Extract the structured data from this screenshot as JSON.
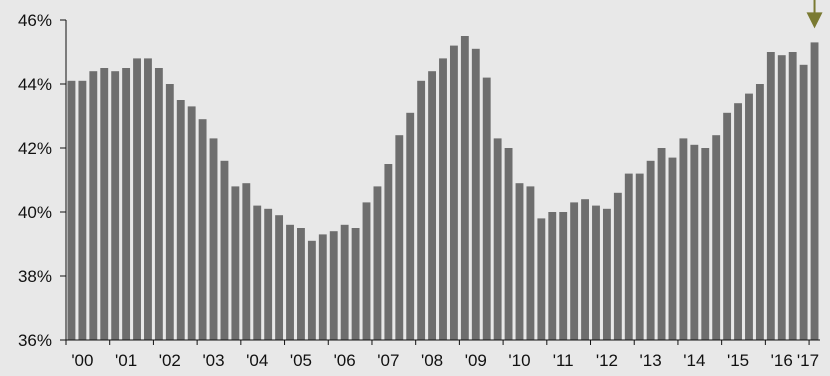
{
  "chart_data": {
    "type": "bar",
    "title": "",
    "xlabel": "",
    "ylabel": "",
    "ylim": [
      36,
      46
    ],
    "y_ticks": [
      36,
      38,
      40,
      42,
      44,
      46
    ],
    "y_tick_labels": [
      "36%",
      "38%",
      "40%",
      "42%",
      "44%",
      "46%"
    ],
    "x_tick_labels": [
      "'00",
      "'01",
      "'02",
      "'03",
      "'04",
      "'05",
      "'06",
      "'07",
      "'08",
      "'09",
      "'10",
      "'11",
      "'12",
      "'13",
      "'14",
      "'15",
      "'16",
      "'17"
    ],
    "grid": false,
    "bar_color": "#6e6e6e",
    "arrow_color": "#7a7a32",
    "annotation": "arrow marking latest value",
    "categories": [
      "Q1 2000",
      "Q2 2000",
      "Q3 2000",
      "Q4 2000",
      "Q1 2001",
      "Q2 2001",
      "Q3 2001",
      "Q4 2001",
      "Q1 2002",
      "Q2 2002",
      "Q3 2002",
      "Q4 2002",
      "Q1 2003",
      "Q2 2003",
      "Q3 2003",
      "Q4 2003",
      "Q1 2004",
      "Q2 2004",
      "Q3 2004",
      "Q4 2004",
      "Q1 2005",
      "Q2 2005",
      "Q3 2005",
      "Q4 2005",
      "Q1 2006",
      "Q2 2006",
      "Q3 2006",
      "Q4 2006",
      "Q1 2007",
      "Q2 2007",
      "Q3 2007",
      "Q4 2007",
      "Q1 2008",
      "Q2 2008",
      "Q3 2008",
      "Q4 2008",
      "Q1 2009",
      "Q2 2009",
      "Q3 2009",
      "Q4 2009",
      "Q1 2010",
      "Q2 2010",
      "Q3 2010",
      "Q4 2010",
      "Q1 2011",
      "Q2 2011",
      "Q3 2011",
      "Q4 2011",
      "Q1 2012",
      "Q2 2012",
      "Q3 2012",
      "Q4 2012",
      "Q1 2013",
      "Q2 2013",
      "Q3 2013",
      "Q4 2013",
      "Q1 2014",
      "Q2 2014",
      "Q3 2014",
      "Q4 2014",
      "Q1 2015",
      "Q2 2015",
      "Q3 2015",
      "Q4 2015",
      "Q1 2016",
      "Q2 2016",
      "Q3 2016",
      "Q4 2016",
      "Q1 2017"
    ],
    "values": [
      44.1,
      44.1,
      44.4,
      44.5,
      44.4,
      44.5,
      44.8,
      44.8,
      44.5,
      44.0,
      43.5,
      43.3,
      42.9,
      42.3,
      41.6,
      40.8,
      40.9,
      40.2,
      40.1,
      39.9,
      39.6,
      39.5,
      39.1,
      39.3,
      39.4,
      39.6,
      39.5,
      40.3,
      40.8,
      41.5,
      42.4,
      43.1,
      44.1,
      44.4,
      44.8,
      45.2,
      45.5,
      45.1,
      44.2,
      42.3,
      42.0,
      40.9,
      40.8,
      39.8,
      40.0,
      40.0,
      40.3,
      40.4,
      40.2,
      40.1,
      40.6,
      41.2,
      41.2,
      41.6,
      42.0,
      41.7,
      42.3,
      42.1,
      42.0,
      42.4,
      43.1,
      43.4,
      43.7,
      44.0,
      45.0,
      44.9,
      45.0,
      44.6,
      45.3
    ]
  }
}
